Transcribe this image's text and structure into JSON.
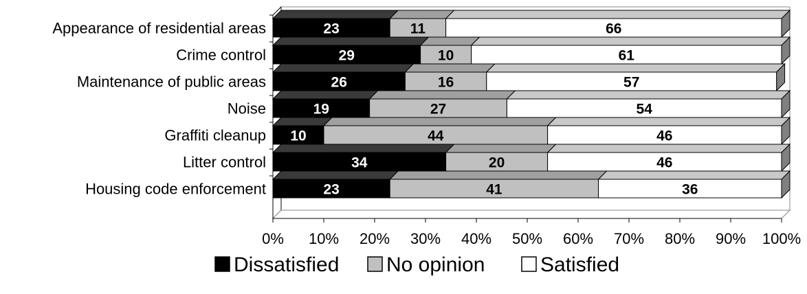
{
  "chart_data": {
    "type": "bar",
    "orientation": "horizontal",
    "stacked": true,
    "percent": true,
    "three_d": true,
    "categories": [
      "Appearance of residential areas",
      "Crime control",
      "Maintenance of public areas",
      "Noise",
      "Graffiti cleanup",
      "Litter control",
      "Housing code enforcement"
    ],
    "series": [
      {
        "name": "Dissatisfied",
        "color": "#000000",
        "label_color": "#ffffff",
        "values": [
          23,
          29,
          26,
          19,
          10,
          34,
          23
        ]
      },
      {
        "name": "No opinion",
        "color": "#c0c0c0",
        "label_color": "#000000",
        "values": [
          11,
          10,
          16,
          27,
          44,
          20,
          41
        ]
      },
      {
        "name": "Satisfied",
        "color": "#ffffff",
        "label_color": "#000000",
        "values": [
          66,
          61,
          57,
          54,
          46,
          46,
          36
        ]
      }
    ],
    "x_ticks": [
      "0%",
      "10%",
      "20%",
      "30%",
      "40%",
      "50%",
      "60%",
      "70%",
      "80%",
      "90%",
      "100%"
    ],
    "xlim": [
      0,
      100
    ],
    "legend_position": "bottom",
    "grid": false
  }
}
